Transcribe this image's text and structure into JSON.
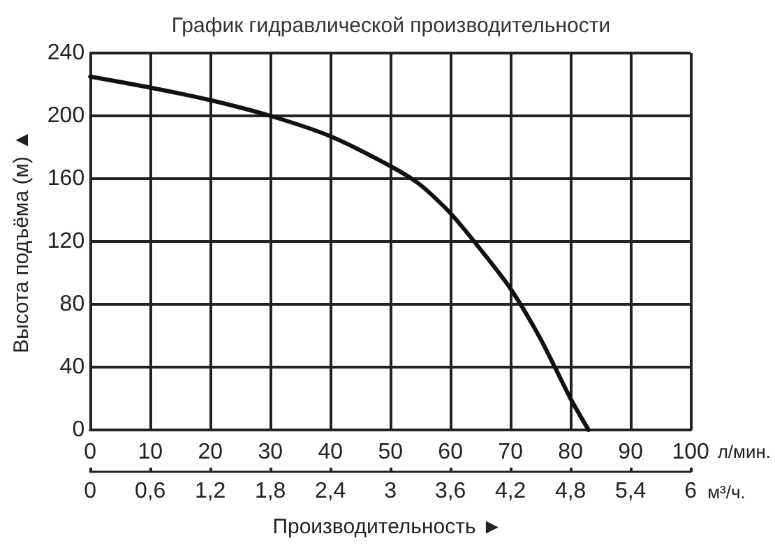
{
  "chart_data": {
    "type": "line",
    "title": "График гидравлической производительности",
    "xlabel": "Производительность ►",
    "ylabel": "Высота подъёма (м) ▲",
    "x2label": "м³/ч.",
    "annotations": [
      "л/мин."
    ],
    "series": [
      {
        "color": "#111111",
        "x": [
          0,
          10,
          20,
          30,
          40,
          50,
          55,
          60,
          65,
          70,
          75,
          80,
          83
        ],
        "values": [
          225,
          218,
          210,
          200,
          187,
          168,
          156,
          138,
          115,
          90,
          58,
          20,
          0
        ]
      }
    ],
    "xlim": [
      0,
      100
    ],
    "xticks": [
      0,
      10,
      20,
      30,
      40,
      50,
      60,
      70,
      80,
      90,
      100
    ],
    "x2lim": [
      0,
      6
    ],
    "x2ticks": [
      0,
      {
        "value": 0.6,
        "label": "0,6"
      },
      {
        "value": 1.2,
        "label": "1,2"
      },
      {
        "value": 1.8,
        "label": "1,8"
      },
      {
        "value": 2.4,
        "label": "2,4"
      },
      3,
      {
        "value": 3.6,
        "label": "3,6"
      },
      {
        "value": 4.2,
        "label": "4,2"
      },
      {
        "value": 4.8,
        "label": "4,8"
      },
      {
        "value": 5.4,
        "label": "5,4"
      },
      6
    ],
    "ylim": [
      0,
      240
    ],
    "yticks": [
      0,
      40,
      80,
      120,
      160,
      200,
      240
    ],
    "grid": true,
    "marker": "none",
    "line_style": "solid"
  }
}
